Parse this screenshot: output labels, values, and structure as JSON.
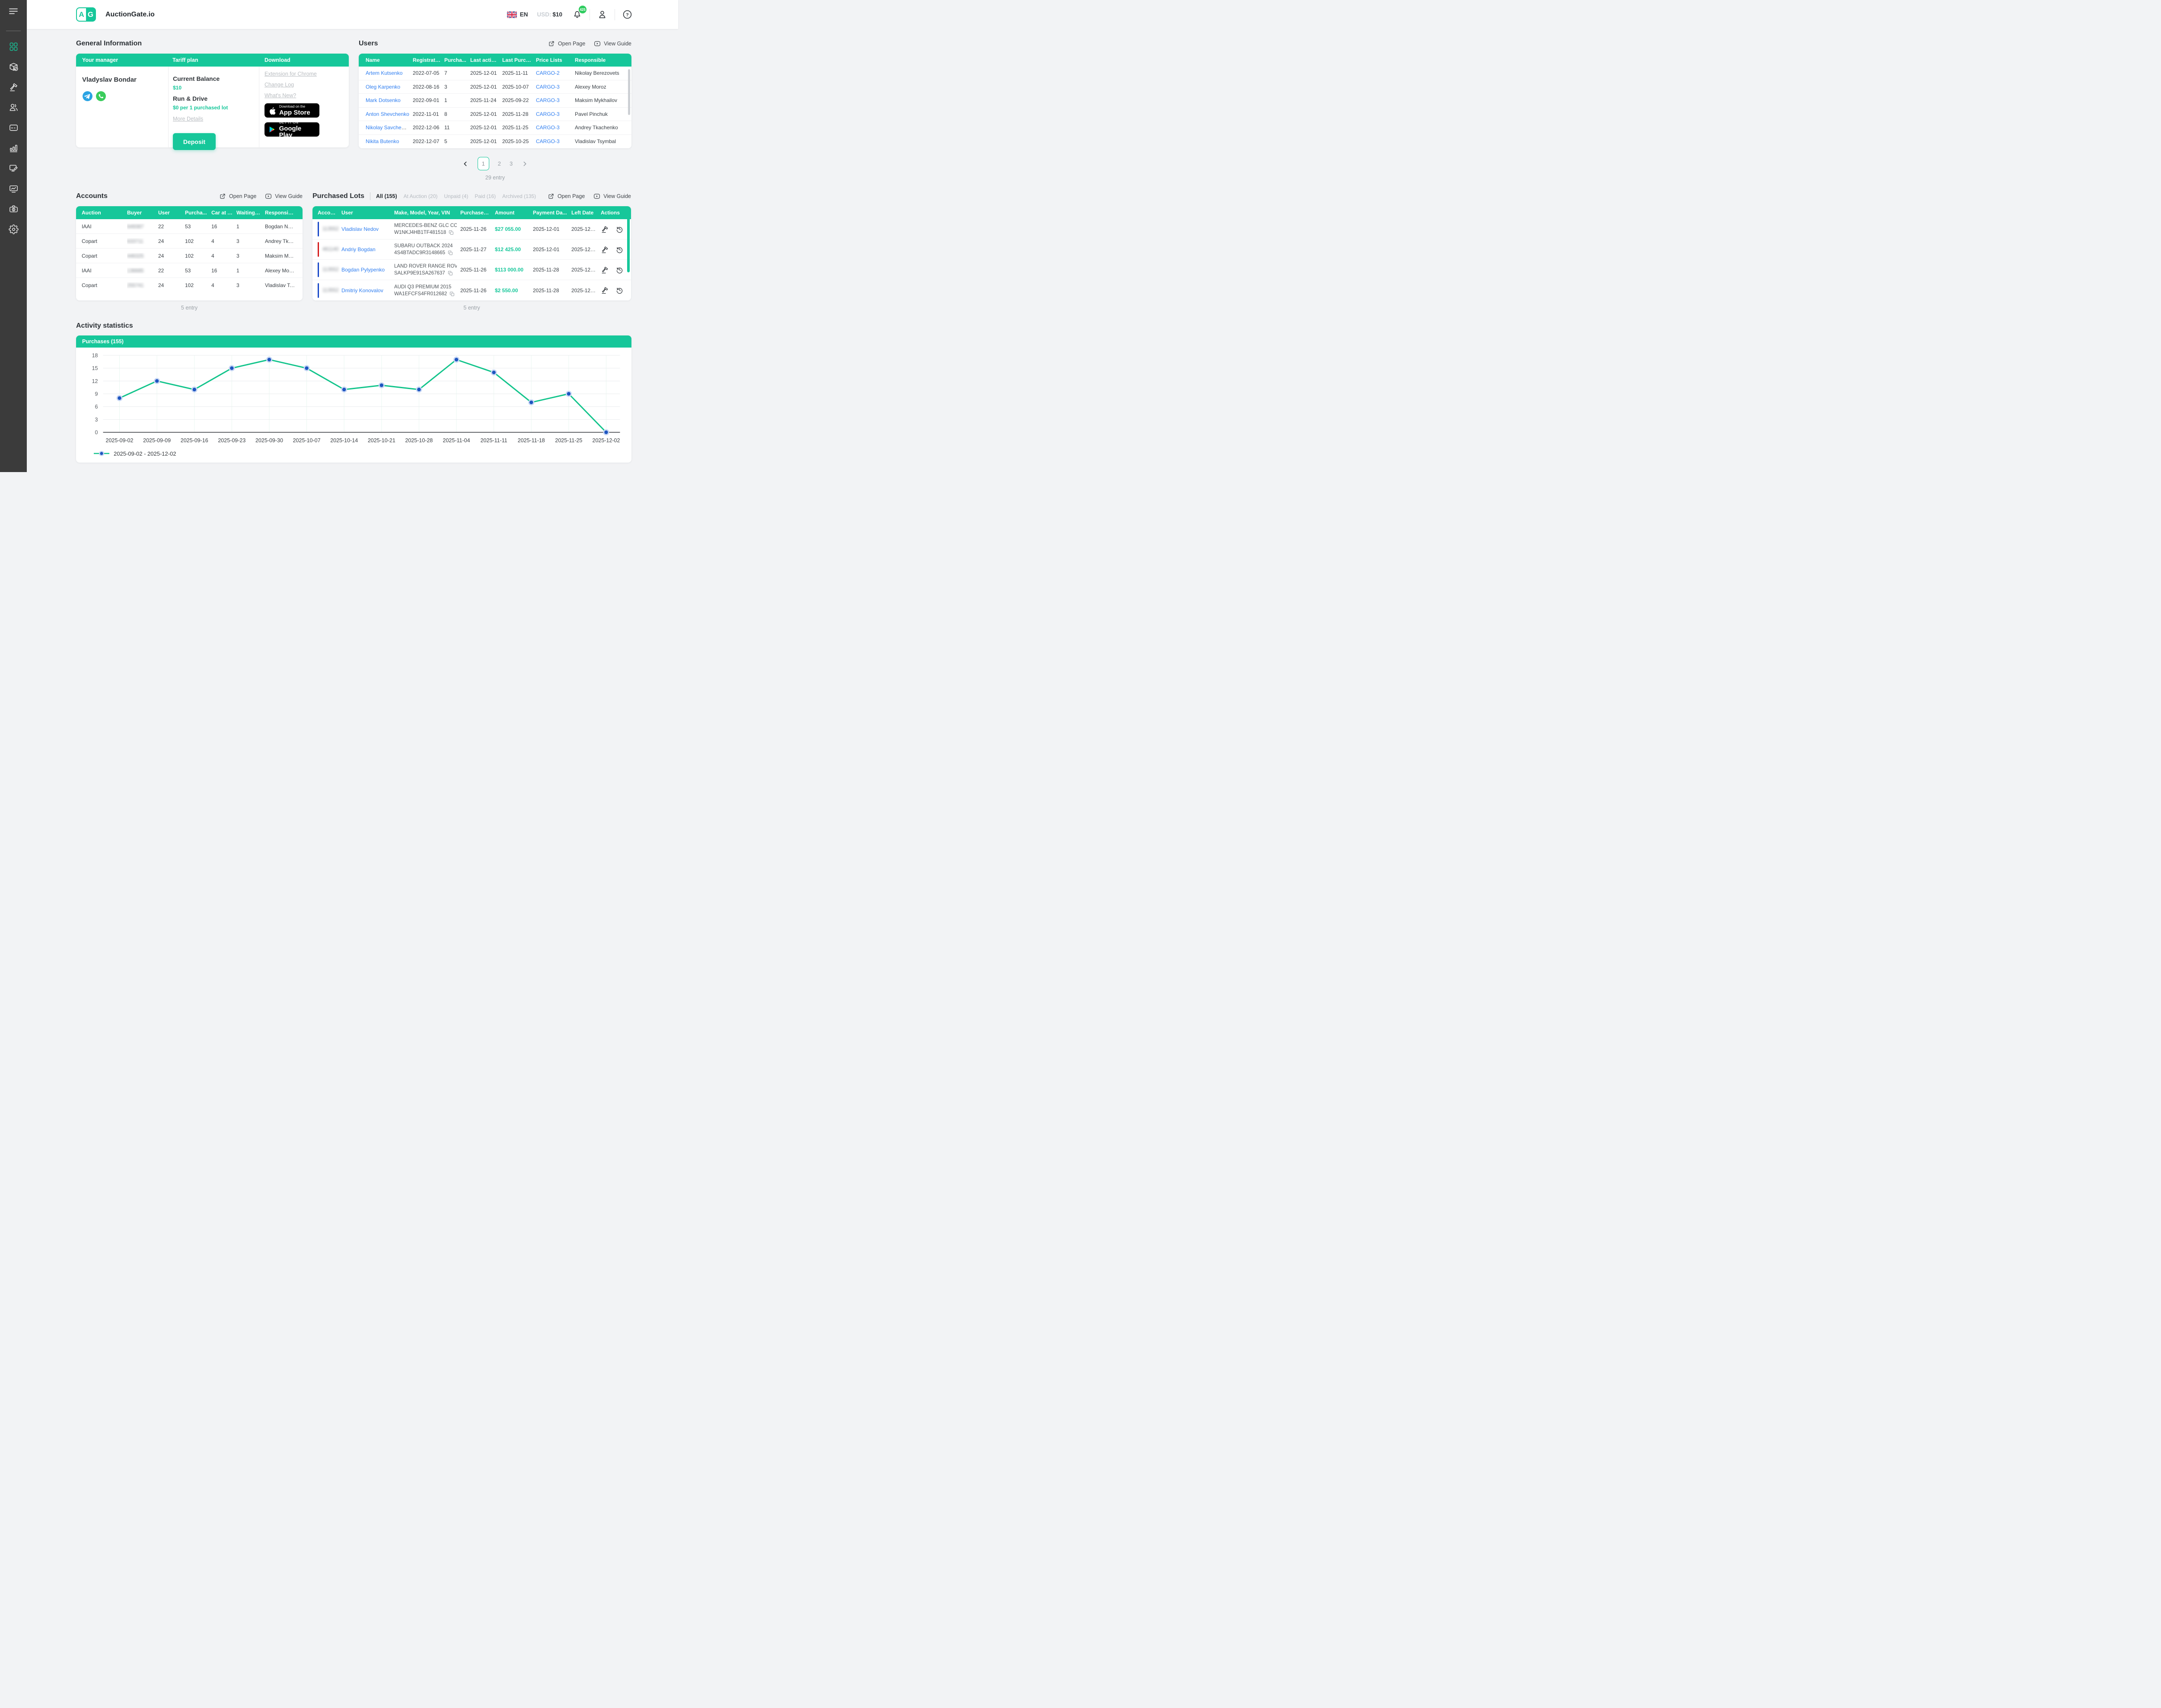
{
  "topbar": {
    "brand": "AuctionGate.io",
    "logo_letters": [
      "A",
      "G"
    ],
    "language": "EN",
    "currency_label": "USD:",
    "currency_value": "$10",
    "notifications_count": "425"
  },
  "sidebar": {
    "items": [
      {
        "icon": "dashboard-grid",
        "active": true
      },
      {
        "icon": "package-check",
        "active": false
      },
      {
        "icon": "gavel",
        "active": false
      },
      {
        "icon": "users",
        "active": false
      },
      {
        "icon": "credit-card",
        "active": false
      },
      {
        "icon": "bar-chart",
        "active": false
      },
      {
        "icon": "monitor-pen",
        "active": false
      },
      {
        "icon": "screen-activity",
        "active": false
      },
      {
        "icon": "briefcase-dollar",
        "active": false
      },
      {
        "icon": "gear",
        "active": false
      }
    ]
  },
  "general_info": {
    "title": "General Information",
    "columns": [
      "Your manager",
      "Tariff plan",
      "Download"
    ],
    "manager": {
      "name": "Vladyslav Bondar"
    },
    "tariff": {
      "balance_label": "Current Balance",
      "balance_value": "$10",
      "plan_name": "Run & Drive",
      "plan_price": "$0 per 1 purchased lot",
      "more_details": "More Details",
      "deposit": "Deposit"
    },
    "download": {
      "links": [
        "Extension for Chrome",
        "Change Log",
        "What's New?"
      ],
      "appstore": {
        "top": "Download on the",
        "bottom": "App Store"
      },
      "gplay": {
        "top": "GET IT ON",
        "bottom": "Google Play"
      }
    }
  },
  "users": {
    "title": "Users",
    "open_page": "Open Page",
    "view_guide": "View Guide",
    "headers": [
      "Name",
      "Registratio...",
      "Purcha...",
      "Last activity",
      "Last Purch...",
      "Price Lists",
      "Responsible"
    ],
    "rows": [
      {
        "name": "Artem Kutsenko",
        "registration": "2022-07-05",
        "purchases": "7",
        "last_activity": "2025-12-01",
        "last_purchase": "2025-11-11",
        "price_list": "CARGO-2",
        "responsible": "Nikolay Berezovets"
      },
      {
        "name": "Oleg Karpenko",
        "registration": "2022-08-16",
        "purchases": "3",
        "last_activity": "2025-12-01",
        "last_purchase": "2025-10-07",
        "price_list": "CARGO-3",
        "responsible": "Alexey Moroz"
      },
      {
        "name": "Mark Dotsenko",
        "registration": "2022-09-01",
        "purchases": "1",
        "last_activity": "2025-11-24",
        "last_purchase": "2025-09-22",
        "price_list": "CARGO-3",
        "responsible": "Maksim Mykhailov"
      },
      {
        "name": "Anton Shevchenko",
        "registration": "2022-11-01",
        "purchases": "8",
        "last_activity": "2025-12-01",
        "last_purchase": "2025-11-28",
        "price_list": "CARGO-3",
        "responsible": "Pavel Pinchuk"
      },
      {
        "name": "Nikolay Savchenko",
        "registration": "2022-12-06",
        "purchases": "11",
        "last_activity": "2025-12-01",
        "last_purchase": "2025-11-25",
        "price_list": "CARGO-3",
        "responsible": "Andrey Tkachenko"
      },
      {
        "name": "Nikita Butenko",
        "registration": "2022-12-07",
        "purchases": "5",
        "last_activity": "2025-12-01",
        "last_purchase": "2025-10-25",
        "price_list": "CARGO-3",
        "responsible": "Vladislav Tsymbal"
      }
    ],
    "pagination": {
      "pages": [
        "1",
        "2",
        "3"
      ],
      "active": "1",
      "total": "29 entry"
    }
  },
  "accounts": {
    "title": "Accounts",
    "open_page": "Open Page",
    "view_guide": "View Guide",
    "headers": [
      "Auction",
      "Buyer",
      "User",
      "Purcha...",
      "Car at A...",
      "Waiting f...",
      "Responsible"
    ],
    "rows": [
      {
        "auction": "IAAI",
        "buyer_masked": "649387",
        "user": "22",
        "purchases": "53",
        "car_at_auction": "16",
        "waiting": "1",
        "responsible": "Bogdan  Nosov"
      },
      {
        "auction": "Copart",
        "buyer_masked": "633711",
        "user": "24",
        "purchases": "102",
        "car_at_auction": "4",
        "waiting": "3",
        "responsible": "Andrey Tkache.."
      },
      {
        "auction": "Copart",
        "buyer_masked": "446325",
        "user": "24",
        "purchases": "102",
        "car_at_auction": "4",
        "waiting": "3",
        "responsible": "Maksim Mykhai.."
      },
      {
        "auction": "IAAI",
        "buyer_masked": "136685",
        "user": "22",
        "purchases": "53",
        "car_at_auction": "16",
        "waiting": "1",
        "responsible": "Alexey Moroz"
      },
      {
        "auction": "Copart",
        "buyer_masked": "255741",
        "user": "24",
        "purchases": "102",
        "car_at_auction": "4",
        "waiting": "3",
        "responsible": "Vladislav Tsym.."
      }
    ],
    "footer": "5 entry"
  },
  "purchased_lots": {
    "title": "Purchased Lots",
    "tabs": [
      {
        "label": "All (155)",
        "active": true
      },
      {
        "label": "At Auction (20)",
        "active": false
      },
      {
        "label": "Unpaid (4)",
        "active": false
      },
      {
        "label": "Paid (16)",
        "active": false
      },
      {
        "label": "Archived (135)",
        "active": false
      }
    ],
    "open_page": "Open Page",
    "view_guide": "View Guide",
    "headers": [
      "Account",
      "User",
      "Make, Model, Year, VIN",
      "Purchased ...",
      "Amount",
      "Payment Da...",
      "Left Date",
      "Actions"
    ],
    "rows": [
      {
        "bar_color": "#1847c7",
        "account_masked": "113552",
        "user": "Vladislav Nedov",
        "vehicle": "MERCEDES-BENZ GLC CO...",
        "vin": "W1NKJ4HB1TF481518",
        "purchased": "2025-11-26",
        "amount": "$27 055.00",
        "payment_date": "2025-12-01",
        "left_date": "2025-12-02"
      },
      {
        "bar_color": "#d41a1a",
        "account_masked": "461140",
        "user": "Andriy Bogdan",
        "vehicle": "SUBARU OUTBACK 2024",
        "vin": "4S4BTADC9R3148665",
        "purchased": "2025-11-27",
        "amount": "$12 425.00",
        "payment_date": "2025-12-01",
        "left_date": "2025-12-02"
      },
      {
        "bar_color": "#1847c7",
        "account_masked": "113552",
        "user": "Bogdan Pylypenko",
        "vehicle": "LAND ROVER RANGE ROV...",
        "vin": "SALKP9E91SA267637",
        "purchased": "2025-11-26",
        "amount": "$113 000.00",
        "payment_date": "2025-11-28",
        "left_date": "2025-12-01"
      },
      {
        "bar_color": "#1847c7",
        "account_masked": "113552",
        "user": "Dmitriy Konovalov",
        "vehicle": "AUDI Q3 PREMIUM 2015",
        "vin": "WA1EFCFS4FR012682",
        "purchased": "2025-11-26",
        "amount": "$2 550.00",
        "payment_date": "2025-11-28",
        "left_date": "2025-12-01"
      }
    ],
    "footer": "5 entry"
  },
  "activity": {
    "title": "Activity statistics",
    "chart_header": "Purchases (155)",
    "legend": "2025-09-02 - 2025-12-02"
  },
  "chart_data": {
    "type": "line",
    "title": "Purchases (155)",
    "x": [
      "2025-09-02",
      "2025-09-09",
      "2025-09-16",
      "2025-09-23",
      "2025-09-30",
      "2025-10-07",
      "2025-10-14",
      "2025-10-21",
      "2025-10-28",
      "2025-11-04",
      "2025-11-11",
      "2025-11-18",
      "2025-11-25",
      "2025-12-02"
    ],
    "series": [
      {
        "name": "2025-09-02 - 2025-12-02",
        "values": [
          8,
          12,
          10,
          15,
          17,
          15,
          10,
          11,
          10,
          17,
          14,
          7,
          9,
          0
        ]
      }
    ],
    "xlabel": "",
    "ylabel": "",
    "ylim": [
      0,
      18
    ],
    "yticks": [
      0,
      3,
      6,
      9,
      12,
      15,
      18
    ],
    "grid": true,
    "legend_position": "bottom-left",
    "line_color": "#12c48b",
    "point_color": "#1d55c0",
    "point_halo": "#c7d6f4"
  },
  "colors": {
    "brand_green": "#16c79a",
    "link_blue": "#2f7ef0",
    "badge_green": "#2ecc5f",
    "sidebar_bg": "#3b3b3b",
    "bar_blue": "#1847c7",
    "bar_red": "#d41a1a"
  }
}
